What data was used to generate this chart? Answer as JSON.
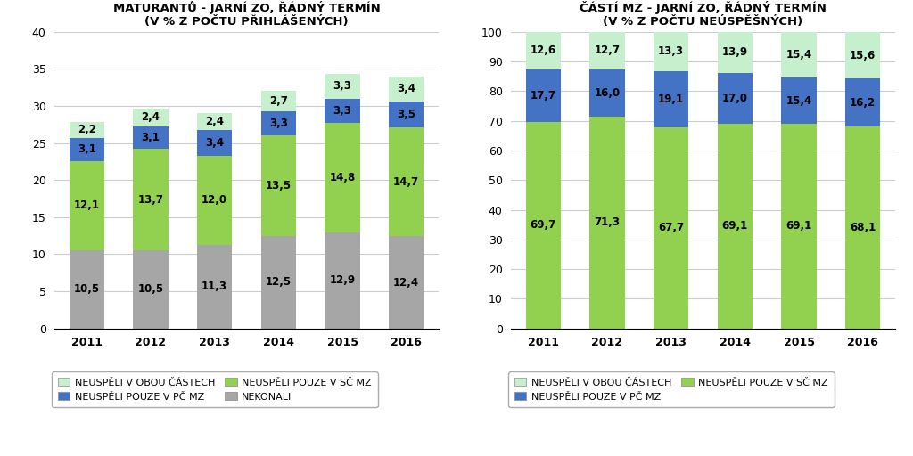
{
  "years": [
    "2011",
    "2012",
    "2013",
    "2014",
    "2015",
    "2016"
  ],
  "chart1": {
    "title": "STRUKTURA HRUBÉ NEÚSPĚŠNOSTI\nMATURANTŮ - JARNÍ ZO, ŘÁDNÝ TERMÍN\n(V % Z POČTU PŘIHLÁŠENÝCH)",
    "nekonali": [
      10.5,
      10.5,
      11.3,
      12.5,
      12.9,
      12.4
    ],
    "sc_mz": [
      12.1,
      13.7,
      12.0,
      13.5,
      14.8,
      14.7
    ],
    "pc_mz": [
      3.1,
      3.1,
      3.4,
      3.3,
      3.3,
      3.5
    ],
    "obou": [
      2.2,
      2.4,
      2.4,
      2.7,
      3.3,
      3.4
    ],
    "ylim": [
      0,
      40
    ],
    "yticks": [
      0,
      5,
      10,
      15,
      20,
      25,
      30,
      35,
      40
    ]
  },
  "chart2": {
    "title": "STRUKTURA NEÚSPĚŠNOSTI MATURANTŮ DLE\nČÁSTÍ MZ - JARNÍ ZO, ŘÁDNÝ TERMÍN\n(V % Z POČTU NEÚSPĚŠNÝCH)",
    "sc_mz": [
      69.7,
      71.3,
      67.7,
      69.1,
      69.1,
      68.1
    ],
    "pc_mz": [
      17.7,
      16.0,
      19.1,
      17.0,
      15.4,
      16.2
    ],
    "obou": [
      12.6,
      12.7,
      13.3,
      13.9,
      15.4,
      15.6
    ],
    "ylim": [
      0,
      100
    ],
    "yticks": [
      0,
      10,
      20,
      30,
      40,
      50,
      60,
      70,
      80,
      90,
      100
    ]
  },
  "colors": {
    "nekonali": "#A6A6A6",
    "sc_mz": "#92D050",
    "pc_mz": "#4472C4",
    "obou": "#C6EFCE"
  },
  "legend1": [
    {
      "label": "NEUSPĚLI V OBOU ČÁSTECH",
      "color": "#C6EFCE"
    },
    {
      "label": "NEUSPĚLI POUZE V PČ MZ",
      "color": "#4472C4"
    },
    {
      "label": "NEUSPĚLI POUZE V SČ MZ",
      "color": "#92D050"
    },
    {
      "label": "NEKONALI",
      "color": "#A6A6A6"
    }
  ],
  "legend2": [
    {
      "label": "NEUSPĚLI V OBOU ČÁSTECH",
      "color": "#C6EFCE"
    },
    {
      "label": "NEUSPĚLI POUZE V PČ MZ",
      "color": "#4472C4"
    },
    {
      "label": "NEUSPĚLI POUZE V SČ MZ",
      "color": "#92D050"
    }
  ],
  "bar_width": 0.55,
  "label_fontsize": 8.5,
  "title_fontsize": 9.5,
  "tick_fontsize": 9.0,
  "legend_fontsize": 8.0,
  "background_color": "#FFFFFF",
  "grid_color": "#CCCCCC"
}
